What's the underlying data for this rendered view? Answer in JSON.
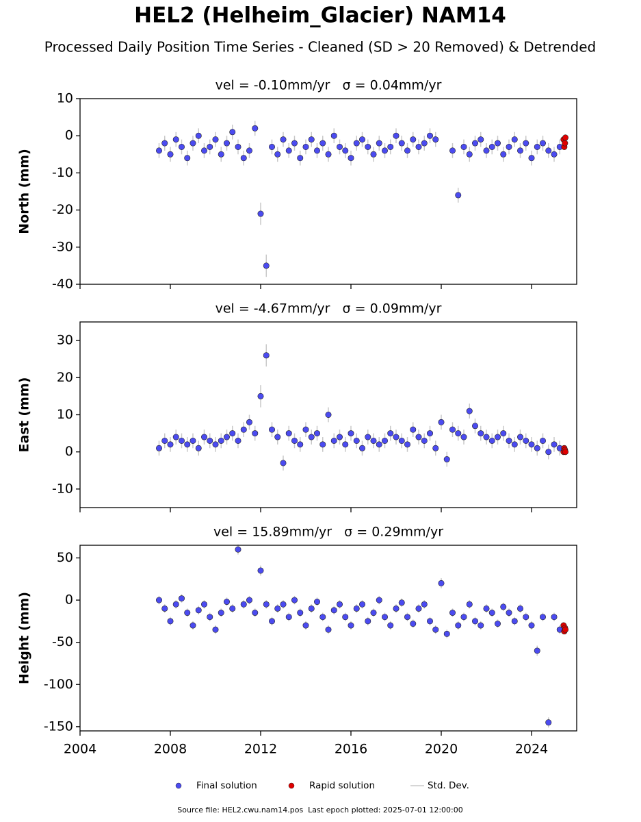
{
  "title": "HEL2 (Helheim_Glacier) NAM14",
  "subtitle": "Processed Daily Position Time Series - Cleaned (SD > 20 Removed) & Detrended",
  "legend": [
    {
      "name": "Final solution",
      "color": "#4b4bf0"
    },
    {
      "name": "Rapid solution",
      "color": "#e00000"
    },
    {
      "name": "Std. Dev.",
      "color": "#c8c8c8"
    }
  ],
  "source": "Source file: HEL2.cwu.nam14.pos  Last epoch plotted: 2025-07-01 12:00:00",
  "chart_data": [
    {
      "type": "scatter",
      "title": "vel = -0.10mm/yr   σ = 0.04mm/yr",
      "y_label": "North (mm)",
      "xlim": [
        2004,
        2026
      ],
      "xticks": [
        2004,
        2008,
        2012,
        2016,
        2020,
        2024
      ],
      "ylim": [
        -40,
        10
      ],
      "yticks": [
        -40,
        -30,
        -20,
        -10,
        0,
        10
      ],
      "series": [
        {
          "name": "Final solution",
          "color": "#4b4bf0",
          "x": [
            2007.5,
            2007.75,
            2008,
            2008.25,
            2008.5,
            2008.75,
            2009,
            2009.25,
            2009.5,
            2009.75,
            2010,
            2010.25,
            2010.5,
            2010.75,
            2011,
            2011.25,
            2011.5,
            2011.75,
            2012,
            2012.25,
            2012.5,
            2012.75,
            2013,
            2013.25,
            2013.5,
            2013.75,
            2014,
            2014.25,
            2014.5,
            2014.75,
            2015,
            2015.25,
            2015.5,
            2015.75,
            2016,
            2016.25,
            2016.5,
            2016.75,
            2017,
            2017.25,
            2017.5,
            2017.75,
            2018,
            2018.25,
            2018.5,
            2018.75,
            2019,
            2019.25,
            2019.5,
            2019.75,
            2020,
            2020.25,
            2020.5,
            2020.75,
            2021,
            2021.25,
            2021.5,
            2021.75,
            2022,
            2022.25,
            2022.5,
            2022.75,
            2023,
            2023.25,
            2023.5,
            2023.75,
            2024,
            2024.25,
            2024.5,
            2024.75,
            2025,
            2025.25
          ],
          "values": [
            -4,
            -2,
            -5,
            -1,
            -3,
            -6,
            -2,
            0,
            -4,
            -3,
            -1,
            -5,
            -2,
            1,
            -3,
            -6,
            -4,
            2,
            -21,
            -35,
            -3,
            -5,
            -1,
            -4,
            -2,
            -6,
            -3,
            -1,
            -4,
            -2,
            -5,
            0,
            -3,
            -4,
            -6,
            -2,
            -1,
            -3,
            -5,
            -2,
            -4,
            -3,
            0,
            -2,
            -4,
            -1,
            -3,
            -2,
            0,
            -1,
            null,
            null,
            -4,
            -16,
            -3,
            -5,
            -2,
            -1,
            -4,
            -3,
            -2,
            -5,
            -3,
            -1,
            -4,
            -2,
            -6,
            -3,
            -2,
            -4,
            -5,
            -3
          ],
          "errors": [
            2,
            2,
            2,
            2,
            2,
            2,
            2,
            2,
            2,
            2,
            2,
            2,
            2,
            2,
            2,
            2,
            2,
            2,
            3,
            3,
            2,
            2,
            2,
            2,
            2,
            2,
            2,
            2,
            2,
            2,
            2,
            2,
            2,
            2,
            2,
            2,
            2,
            2,
            2,
            2,
            2,
            2,
            2,
            2,
            2,
            2,
            2,
            2,
            2,
            2,
            null,
            null,
            2,
            2,
            2,
            2,
            2,
            2,
            2,
            2,
            2,
            2,
            2,
            2,
            2,
            2,
            2,
            2,
            2,
            2,
            2,
            2
          ]
        },
        {
          "name": "Rapid solution",
          "color": "#e00000",
          "x": [
            2025.42,
            2025.45,
            2025.48,
            2025.5
          ],
          "values": [
            -1,
            -3,
            -2,
            -0.5
          ]
        }
      ]
    },
    {
      "type": "scatter",
      "title": "vel = -4.67mm/yr   σ = 0.09mm/yr",
      "y_label": "East (mm)",
      "xlim": [
        2004,
        2026
      ],
      "xticks": [
        2004,
        2008,
        2012,
        2016,
        2020,
        2024
      ],
      "ylim": [
        -15,
        35
      ],
      "yticks": [
        -10,
        0,
        10,
        20,
        30
      ],
      "series": [
        {
          "name": "Final solution",
          "color": "#4b4bf0",
          "x": [
            2007.5,
            2007.75,
            2008,
            2008.25,
            2008.5,
            2008.75,
            2009,
            2009.25,
            2009.5,
            2009.75,
            2010,
            2010.25,
            2010.5,
            2010.75,
            2011,
            2011.25,
            2011.5,
            2011.75,
            2012,
            2012.25,
            2012.5,
            2012.75,
            2013,
            2013.25,
            2013.5,
            2013.75,
            2014,
            2014.25,
            2014.5,
            2014.75,
            2015,
            2015.25,
            2015.5,
            2015.75,
            2016,
            2016.25,
            2016.5,
            2016.75,
            2017,
            2017.25,
            2017.5,
            2017.75,
            2018,
            2018.25,
            2018.5,
            2018.75,
            2019,
            2019.25,
            2019.5,
            2019.75,
            2020,
            2020.25,
            2020.5,
            2020.75,
            2021,
            2021.25,
            2021.5,
            2021.75,
            2022,
            2022.25,
            2022.5,
            2022.75,
            2023,
            2023.25,
            2023.5,
            2023.75,
            2024,
            2024.25,
            2024.5,
            2024.75,
            2025,
            2025.25
          ],
          "values": [
            1,
            3,
            2,
            4,
            3,
            2,
            3,
            1,
            4,
            3,
            2,
            3,
            4,
            5,
            3,
            6,
            8,
            5,
            15,
            26,
            6,
            4,
            -3,
            5,
            3,
            2,
            6,
            4,
            5,
            2,
            10,
            3,
            4,
            2,
            5,
            3,
            1,
            4,
            3,
            2,
            3,
            5,
            4,
            3,
            2,
            6,
            4,
            3,
            5,
            1,
            8,
            -2,
            6,
            5,
            4,
            11,
            7,
            5,
            4,
            3,
            4,
            5,
            3,
            2,
            4,
            3,
            2,
            1,
            3,
            0,
            2,
            1
          ],
          "errors": [
            2,
            2,
            2,
            2,
            2,
            2,
            2,
            2,
            2,
            2,
            2,
            2,
            2,
            2,
            2,
            2,
            2,
            2,
            3,
            3,
            2,
            2,
            2,
            2,
            2,
            2,
            2,
            2,
            2,
            2,
            2,
            2,
            2,
            2,
            2,
            2,
            2,
            2,
            2,
            2,
            2,
            2,
            2,
            2,
            2,
            2,
            2,
            2,
            2,
            2,
            2,
            2,
            2,
            2,
            2,
            2,
            2,
            2,
            2,
            2,
            2,
            2,
            2,
            2,
            2,
            2,
            2,
            2,
            2,
            2,
            2,
            2
          ]
        },
        {
          "name": "Rapid solution",
          "color": "#e00000",
          "x": [
            2025.42,
            2025.45,
            2025.48,
            2025.5
          ],
          "values": [
            0,
            1,
            0.5,
            0
          ]
        }
      ]
    },
    {
      "type": "scatter",
      "title": "vel = 15.89mm/yr   σ = 0.29mm/yr",
      "y_label": "Height (mm)",
      "xlim": [
        2004,
        2026
      ],
      "xticks": [
        2004,
        2008,
        2012,
        2016,
        2020,
        2024
      ],
      "ylim": [
        -155,
        65
      ],
      "yticks": [
        -150,
        -100,
        -50,
        0,
        50
      ],
      "series": [
        {
          "name": "Final solution",
          "color": "#4b4bf0",
          "x": [
            2007.5,
            2007.75,
            2008,
            2008.25,
            2008.5,
            2008.75,
            2009,
            2009.25,
            2009.5,
            2009.75,
            2010,
            2010.25,
            2010.5,
            2010.75,
            2011,
            2011.25,
            2011.5,
            2011.75,
            2012,
            2012.25,
            2012.5,
            2012.75,
            2013,
            2013.25,
            2013.5,
            2013.75,
            2014,
            2014.25,
            2014.5,
            2014.75,
            2015,
            2015.25,
            2015.5,
            2015.75,
            2016,
            2016.25,
            2016.5,
            2016.75,
            2017,
            2017.25,
            2017.5,
            2017.75,
            2018,
            2018.25,
            2018.5,
            2018.75,
            2019,
            2019.25,
            2019.5,
            2019.75,
            2020,
            2020.25,
            2020.5,
            2020.75,
            2021,
            2021.25,
            2021.5,
            2021.75,
            2022,
            2022.25,
            2022.5,
            2022.75,
            2023,
            2023.25,
            2023.5,
            2023.75,
            2024,
            2024.25,
            2024.5,
            2024.75,
            2025,
            2025.25
          ],
          "values": [
            0,
            -10,
            -25,
            -5,
            2,
            -15,
            -30,
            -12,
            -5,
            -20,
            -35,
            -15,
            -2,
            -10,
            60,
            -5,
            0,
            -15,
            35,
            -5,
            -25,
            -10,
            -5,
            -20,
            0,
            -15,
            -30,
            -10,
            -2,
            -20,
            -35,
            -12,
            -5,
            -20,
            -30,
            -10,
            -5,
            -25,
            -15,
            0,
            -20,
            -30,
            -10,
            -3,
            -20,
            -28,
            -10,
            -5,
            -25,
            -35,
            20,
            -40,
            -15,
            -30,
            -20,
            -5,
            -25,
            -30,
            -10,
            -15,
            -28,
            -8,
            -15,
            -25,
            -10,
            -20,
            -30,
            -60,
            -20,
            -145,
            -20,
            -35
          ],
          "errors": [
            5,
            5,
            5,
            5,
            5,
            5,
            5,
            5,
            5,
            5,
            5,
            5,
            5,
            5,
            6,
            5,
            5,
            5,
            6,
            5,
            5,
            5,
            5,
            5,
            5,
            5,
            5,
            5,
            5,
            5,
            5,
            5,
            5,
            5,
            5,
            5,
            5,
            5,
            5,
            5,
            5,
            5,
            5,
            5,
            5,
            5,
            5,
            5,
            5,
            5,
            6,
            5,
            5,
            5,
            5,
            5,
            5,
            5,
            5,
            5,
            5,
            5,
            5,
            5,
            5,
            5,
            5,
            6,
            5,
            6,
            5,
            5
          ]
        },
        {
          "name": "Rapid solution",
          "color": "#e00000",
          "x": [
            2025.42,
            2025.45,
            2025.48,
            2025.5
          ],
          "values": [
            -30,
            -37,
            -33,
            -35
          ]
        }
      ]
    }
  ]
}
